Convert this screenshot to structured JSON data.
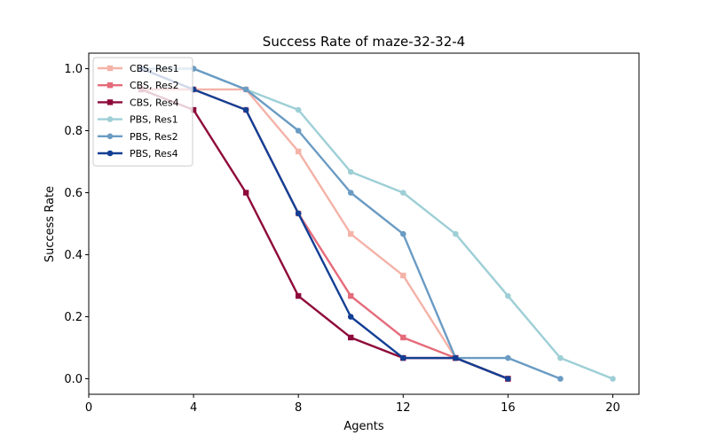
{
  "chart_data": {
    "type": "line",
    "title": "Success Rate of maze-32-32-4",
    "xlabel": "Agents",
    "ylabel": "Success Rate",
    "xlim": [
      0,
      21
    ],
    "ylim": [
      -0.05,
      1.05
    ],
    "xticks": [
      0,
      4,
      8,
      12,
      16,
      20
    ],
    "xtick_labels": [
      "0",
      "4",
      "8",
      "12",
      "16",
      "20"
    ],
    "yticks": [
      0.0,
      0.2,
      0.4,
      0.6,
      0.8,
      1.0
    ],
    "ytick_labels": [
      "0.0",
      "0.2",
      "0.4",
      "0.6",
      "0.8",
      "1.0"
    ],
    "grid": false,
    "legend_position": "top-left",
    "series": [
      {
        "name": "CBS, Res1",
        "color": "#f4b3a8",
        "marker": "square",
        "x": [
          2,
          4,
          6,
          8,
          10,
          12,
          14,
          16
        ],
        "y": [
          0.933,
          0.933,
          0.933,
          0.733,
          0.467,
          0.333,
          0.067,
          0.0
        ]
      },
      {
        "name": "CBS, Res2",
        "color": "#e56b7a",
        "marker": "square",
        "x": [
          2,
          4,
          6,
          8,
          10,
          12,
          14,
          16
        ],
        "y": [
          0.933,
          0.933,
          0.867,
          0.533,
          0.267,
          0.133,
          0.067,
          0.0
        ]
      },
      {
        "name": "CBS, Res4",
        "color": "#8e0a3a",
        "marker": "square",
        "x": [
          2,
          4,
          6,
          8,
          10,
          12,
          14,
          16
        ],
        "y": [
          0.933,
          0.867,
          0.6,
          0.267,
          0.133,
          0.067,
          0.067,
          0.0
        ]
      },
      {
        "name": "PBS, Res1",
        "color": "#9ecfd6",
        "marker": "circle",
        "x": [
          2,
          4,
          6,
          8,
          10,
          12,
          14,
          16,
          18,
          20
        ],
        "y": [
          1.0,
          1.0,
          0.933,
          0.867,
          0.667,
          0.6,
          0.467,
          0.267,
          0.067,
          0.0
        ]
      },
      {
        "name": "PBS, Res2",
        "color": "#6a9bc3",
        "marker": "circle",
        "x": [
          2,
          4,
          6,
          8,
          10,
          12,
          14,
          16,
          18
        ],
        "y": [
          1.0,
          1.0,
          0.933,
          0.8,
          0.6,
          0.467,
          0.067,
          0.067,
          0.0
        ]
      },
      {
        "name": "PBS, Res4",
        "color": "#123f94",
        "marker": "circle",
        "x": [
          2,
          4,
          6,
          8,
          10,
          12,
          14,
          16
        ],
        "y": [
          1.0,
          0.933,
          0.867,
          0.533,
          0.2,
          0.067,
          0.067,
          0.0
        ]
      }
    ]
  }
}
